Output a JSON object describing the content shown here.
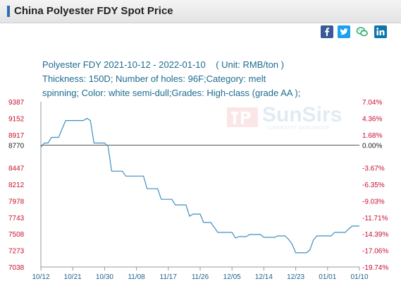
{
  "page_title": "China Polyester FDY Spot Price",
  "subtitle": {
    "line1_range": "Polyester FDY 2021-10-12 - 2022-01-10",
    "line1_unit": "( Unit: RMB/ton )",
    "line2": "Thickness: 150D; Number of holes: 96F;Category: melt",
    "line3": "spinning; Color: white semi-dull;Grades: High-class (grade AA );"
  },
  "share_icons": [
    "facebook-icon",
    "twitter-icon",
    "wechat-icon",
    "linkedin-icon"
  ],
  "watermark": {
    "brand": "SunSirs",
    "tagline": "COMMODITY DATA GROUP"
  },
  "colors": {
    "line": "#3d8fbf",
    "left_axis": "#c8102e",
    "right_axis": "#c8102e",
    "baseline": "#555555",
    "x_labels": "#1f5f8a"
  },
  "chart_data": {
    "type": "line",
    "title": "Polyester FDY 2021-10-12 - 2022-01-10",
    "xlabel": "",
    "ylabel": "( Unit: RMB/ton )",
    "ylim": [
      7038,
      9387
    ],
    "baseline_value": 8770,
    "left_ticks": [
      "9387",
      "9152",
      "8917",
      "8770",
      "8447",
      "8212",
      "7978",
      "7743",
      "7508",
      "7273",
      "7038"
    ],
    "left_tick_values": [
      9387,
      9152,
      8917,
      8770,
      8447,
      8212,
      7978,
      7743,
      7508,
      7273,
      7038
    ],
    "right_ticks": [
      "7.04%",
      "4.36%",
      "1.68%",
      "0.00%",
      "-3.67%",
      "-6.35%",
      "-9.03%",
      "-11.71%",
      "-14.39%",
      "-17.06%",
      "-19.74%"
    ],
    "x_tick_labels": [
      "10/12",
      "10/21",
      "10/30",
      "11/08",
      "11/17",
      "11/26",
      "12/05",
      "12/14",
      "12/23",
      "01/01",
      "01/10"
    ],
    "x_tick_days": [
      0,
      9,
      18,
      27,
      36,
      45,
      54,
      63,
      72,
      81,
      90
    ],
    "grid": false,
    "series": [
      {
        "values": [
          [
            0,
            8740
          ],
          [
            1,
            8800
          ],
          [
            2,
            8800
          ],
          [
            3,
            8880
          ],
          [
            4,
            8880
          ],
          [
            5,
            8880
          ],
          [
            6,
            9000
          ],
          [
            7,
            9120
          ],
          [
            8,
            9120
          ],
          [
            9,
            9120
          ],
          [
            10,
            9120
          ],
          [
            11,
            9120
          ],
          [
            12,
            9120
          ],
          [
            13,
            9150
          ],
          [
            14,
            9120
          ],
          [
            15,
            8800
          ],
          [
            16,
            8800
          ],
          [
            17,
            8800
          ],
          [
            18,
            8800
          ],
          [
            19,
            8750
          ],
          [
            20,
            8400
          ],
          [
            21,
            8400
          ],
          [
            22,
            8400
          ],
          [
            23,
            8400
          ],
          [
            24,
            8330
          ],
          [
            25,
            8330
          ],
          [
            26,
            8330
          ],
          [
            27,
            8330
          ],
          [
            28,
            8330
          ],
          [
            29,
            8330
          ],
          [
            30,
            8150
          ],
          [
            31,
            8150
          ],
          [
            32,
            8150
          ],
          [
            33,
            8150
          ],
          [
            34,
            8000
          ],
          [
            35,
            8000
          ],
          [
            36,
            8000
          ],
          [
            37,
            8000
          ],
          [
            38,
            7920
          ],
          [
            39,
            7920
          ],
          [
            40,
            7920
          ],
          [
            41,
            7920
          ],
          [
            42,
            7760
          ],
          [
            43,
            7790
          ],
          [
            44,
            7790
          ],
          [
            45,
            7790
          ],
          [
            46,
            7670
          ],
          [
            47,
            7670
          ],
          [
            48,
            7670
          ],
          [
            49,
            7600
          ],
          [
            50,
            7530
          ],
          [
            51,
            7530
          ],
          [
            52,
            7530
          ],
          [
            53,
            7530
          ],
          [
            54,
            7530
          ],
          [
            55,
            7450
          ],
          [
            56,
            7470
          ],
          [
            57,
            7470
          ],
          [
            58,
            7470
          ],
          [
            59,
            7500
          ],
          [
            60,
            7500
          ],
          [
            61,
            7500
          ],
          [
            62,
            7500
          ],
          [
            63,
            7460
          ],
          [
            64,
            7460
          ],
          [
            65,
            7460
          ],
          [
            66,
            7460
          ],
          [
            67,
            7480
          ],
          [
            68,
            7480
          ],
          [
            69,
            7480
          ],
          [
            70,
            7430
          ],
          [
            71,
            7360
          ],
          [
            72,
            7240
          ],
          [
            73,
            7240
          ],
          [
            74,
            7240
          ],
          [
            75,
            7240
          ],
          [
            76,
            7280
          ],
          [
            77,
            7420
          ],
          [
            78,
            7480
          ],
          [
            79,
            7480
          ],
          [
            80,
            7480
          ],
          [
            81,
            7480
          ],
          [
            82,
            7480
          ],
          [
            83,
            7530
          ],
          [
            84,
            7530
          ],
          [
            85,
            7530
          ],
          [
            86,
            7530
          ],
          [
            87,
            7580
          ],
          [
            88,
            7620
          ],
          [
            89,
            7620
          ],
          [
            90,
            7620
          ]
        ]
      }
    ]
  }
}
